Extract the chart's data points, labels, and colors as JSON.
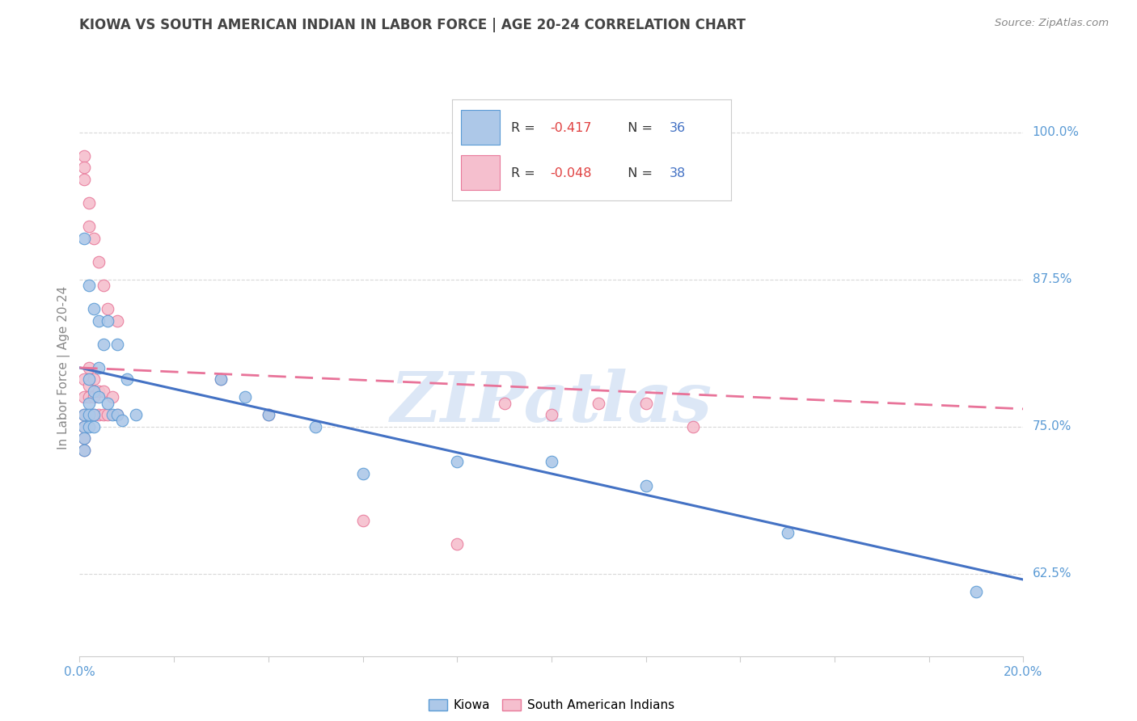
{
  "title": "KIOWA VS SOUTH AMERICAN INDIAN IN LABOR FORCE | AGE 20-24 CORRELATION CHART",
  "source": "Source: ZipAtlas.com",
  "ylabel": "In Labor Force | Age 20-24",
  "yticks": [
    0.625,
    0.75,
    0.875,
    1.0
  ],
  "ytick_labels": [
    "62.5%",
    "75.0%",
    "87.5%",
    "100.0%"
  ],
  "xticks": [
    0.0,
    0.02,
    0.04,
    0.06,
    0.08,
    0.1,
    0.12,
    0.14,
    0.16,
    0.18,
    0.2
  ],
  "xtick_labels_show": [
    "0.0%",
    "",
    "",
    "",
    "",
    "",
    "",
    "",
    "",
    "",
    "20.0%"
  ],
  "xmin": 0.0,
  "xmax": 0.2,
  "ymin": 0.555,
  "ymax": 1.045,
  "kiowa_r": "-0.417",
  "kiowa_n": "36",
  "sa_r": "-0.048",
  "sa_n": "38",
  "kiowa_color": "#adc8e8",
  "sa_color": "#f5bfce",
  "kiowa_edge_color": "#5b9bd5",
  "sa_edge_color": "#e8799a",
  "kiowa_line_color": "#4472c4",
  "sa_line_color": "#e87399",
  "legend_r_color": "#e04040",
  "legend_n_color": "#4472c4",
  "kiowa_scatter": [
    [
      0.001,
      0.76
    ],
    [
      0.001,
      0.75
    ],
    [
      0.001,
      0.74
    ],
    [
      0.001,
      0.73
    ],
    [
      0.002,
      0.79
    ],
    [
      0.002,
      0.77
    ],
    [
      0.002,
      0.76
    ],
    [
      0.002,
      0.75
    ],
    [
      0.003,
      0.78
    ],
    [
      0.003,
      0.76
    ],
    [
      0.003,
      0.75
    ],
    [
      0.004,
      0.8
    ],
    [
      0.004,
      0.775
    ],
    [
      0.005,
      0.82
    ],
    [
      0.006,
      0.77
    ],
    [
      0.007,
      0.76
    ],
    [
      0.008,
      0.76
    ],
    [
      0.009,
      0.755
    ],
    [
      0.01,
      0.79
    ],
    [
      0.012,
      0.76
    ],
    [
      0.001,
      0.91
    ],
    [
      0.002,
      0.87
    ],
    [
      0.003,
      0.85
    ],
    [
      0.004,
      0.84
    ],
    [
      0.006,
      0.84
    ],
    [
      0.008,
      0.82
    ],
    [
      0.03,
      0.79
    ],
    [
      0.035,
      0.775
    ],
    [
      0.04,
      0.76
    ],
    [
      0.05,
      0.75
    ],
    [
      0.06,
      0.71
    ],
    [
      0.08,
      0.72
    ],
    [
      0.1,
      0.72
    ],
    [
      0.12,
      0.7
    ],
    [
      0.15,
      0.66
    ],
    [
      0.19,
      0.61
    ]
  ],
  "sa_scatter": [
    [
      0.001,
      0.79
    ],
    [
      0.001,
      0.775
    ],
    [
      0.001,
      0.76
    ],
    [
      0.001,
      0.75
    ],
    [
      0.001,
      0.74
    ],
    [
      0.001,
      0.73
    ],
    [
      0.002,
      0.8
    ],
    [
      0.002,
      0.785
    ],
    [
      0.002,
      0.775
    ],
    [
      0.003,
      0.79
    ],
    [
      0.003,
      0.775
    ],
    [
      0.003,
      0.76
    ],
    [
      0.004,
      0.78
    ],
    [
      0.004,
      0.76
    ],
    [
      0.005,
      0.78
    ],
    [
      0.005,
      0.76
    ],
    [
      0.006,
      0.76
    ],
    [
      0.007,
      0.775
    ],
    [
      0.008,
      0.76
    ],
    [
      0.001,
      0.98
    ],
    [
      0.001,
      0.97
    ],
    [
      0.001,
      0.96
    ],
    [
      0.002,
      0.94
    ],
    [
      0.002,
      0.92
    ],
    [
      0.003,
      0.91
    ],
    [
      0.004,
      0.89
    ],
    [
      0.005,
      0.87
    ],
    [
      0.006,
      0.85
    ],
    [
      0.008,
      0.84
    ],
    [
      0.03,
      0.79
    ],
    [
      0.04,
      0.76
    ],
    [
      0.06,
      0.67
    ],
    [
      0.08,
      0.65
    ],
    [
      0.09,
      0.77
    ],
    [
      0.1,
      0.76
    ],
    [
      0.11,
      0.77
    ],
    [
      0.12,
      0.77
    ],
    [
      0.13,
      0.75
    ]
  ],
  "kiowa_line": [
    0.8,
    0.62
  ],
  "sa_line": [
    0.8,
    0.765
  ],
  "watermark_text": "ZIPatlas",
  "watermark_color": "#c5d8f0",
  "background_color": "#ffffff",
  "grid_color": "#d8d8d8",
  "axis_label_color": "#5b9bd5",
  "ylabel_color": "#888888",
  "title_color": "#444444",
  "source_color": "#888888"
}
